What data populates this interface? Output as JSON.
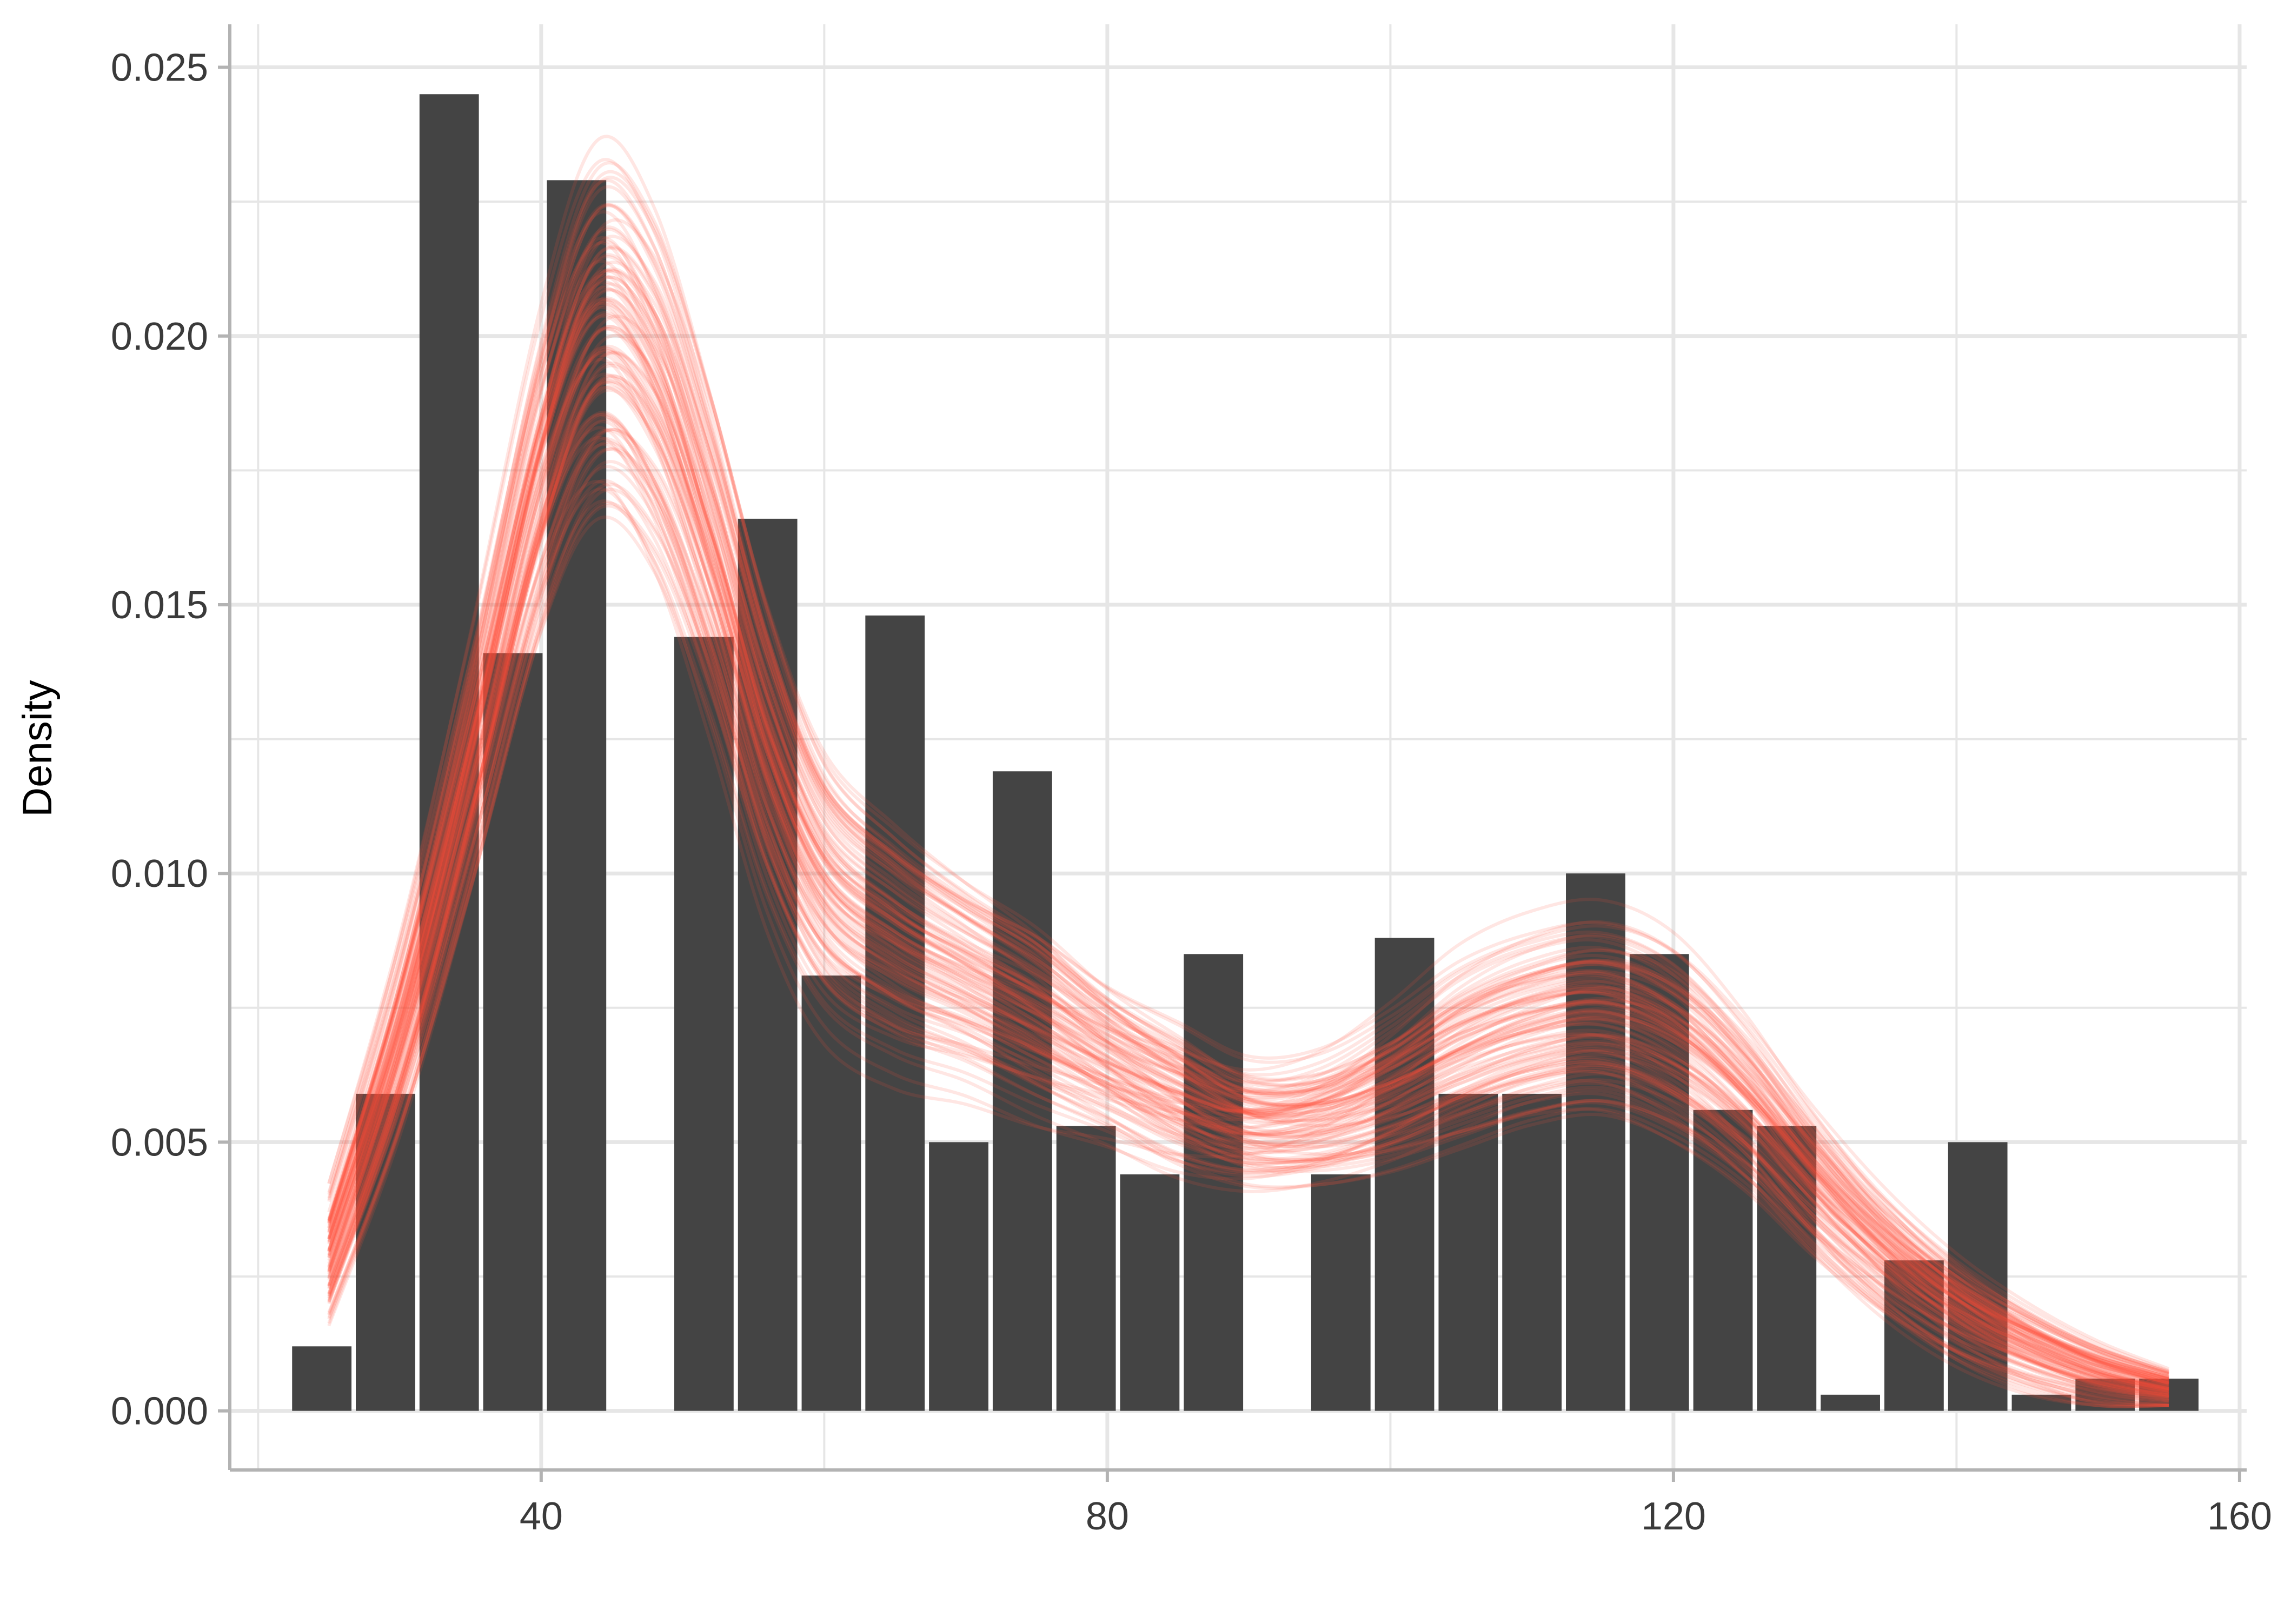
{
  "chart_data": {
    "type": "bar",
    "title": "",
    "xlabel": "",
    "ylabel": "Density",
    "xlim": [
      18,
      160.5
    ],
    "ylim": [
      -0.0011,
      0.0258
    ],
    "xticks": [
      40,
      80,
      120,
      160
    ],
    "yticks": [
      0.0,
      0.005,
      0.01,
      0.015,
      0.02,
      0.025
    ],
    "xtick_labels": [
      "40",
      "80",
      "120",
      "160"
    ],
    "ytick_labels": [
      "0.000",
      "0.005",
      "0.010",
      "0.015",
      "0.020",
      "0.025"
    ],
    "grid": true,
    "legend": "none",
    "colors": {
      "bars": "#444444",
      "curves": "#ff4b36",
      "grid": "#e6e6e6",
      "axis": "#b3b3b3"
    },
    "histogram": {
      "bin_width": 4.5,
      "bin_centers": [
        24.5,
        29.0,
        33.5,
        38.0,
        42.5,
        47.0,
        51.5,
        56.0,
        60.5,
        65.0,
        69.5,
        74.0,
        78.5,
        83.0,
        87.5,
        92.0,
        96.5,
        101.0,
        105.5,
        110.0,
        114.5,
        119.0,
        123.5,
        128.0,
        132.5,
        137.0,
        141.5,
        146.0,
        150.5,
        155.0
      ],
      "densities": [
        0.0012,
        0.0059,
        0.0245,
        0.0141,
        0.0229,
        0.0,
        0.0144,
        0.0166,
        0.0081,
        0.0148,
        0.005,
        0.0119,
        0.0053,
        0.0044,
        0.0085,
        0.0,
        0.0044,
        0.0088,
        0.0059,
        0.0059,
        0.01,
        0.0085,
        0.0056,
        0.0053,
        0.0003,
        0.0028,
        0.005,
        0.0003,
        0.0006,
        0.0006
      ]
    },
    "density_curves": {
      "count": 100,
      "x_range": [
        25,
        155
      ],
      "mean_curve": {
        "x": [
          25,
          30,
          35,
          40,
          44,
          48,
          52,
          56,
          60,
          65,
          70,
          75,
          80,
          85,
          90,
          95,
          100,
          105,
          110,
          115,
          120,
          125,
          130,
          135,
          140,
          145,
          150,
          155
        ],
        "y": [
          0.0028,
          0.0068,
          0.0118,
          0.0172,
          0.0198,
          0.0188,
          0.0158,
          0.0122,
          0.0098,
          0.0087,
          0.008,
          0.0073,
          0.0065,
          0.0058,
          0.0053,
          0.0054,
          0.0059,
          0.0066,
          0.0071,
          0.0073,
          0.0068,
          0.0057,
          0.0042,
          0.0029,
          0.0019,
          0.0012,
          0.0007,
          0.0004
        ]
      },
      "spread": [
        0.0007,
        0.001,
        0.0013,
        0.0016,
        0.0018,
        0.0017,
        0.0015,
        0.0013,
        0.0011,
        0.001,
        0.0009,
        0.0009,
        0.0008,
        0.0008,
        0.0007,
        0.0007,
        0.0008,
        0.0009,
        0.0009,
        0.0009,
        0.0009,
        0.0008,
        0.0007,
        0.0006,
        0.0005,
        0.0004,
        0.0003,
        0.0002
      ]
    }
  }
}
